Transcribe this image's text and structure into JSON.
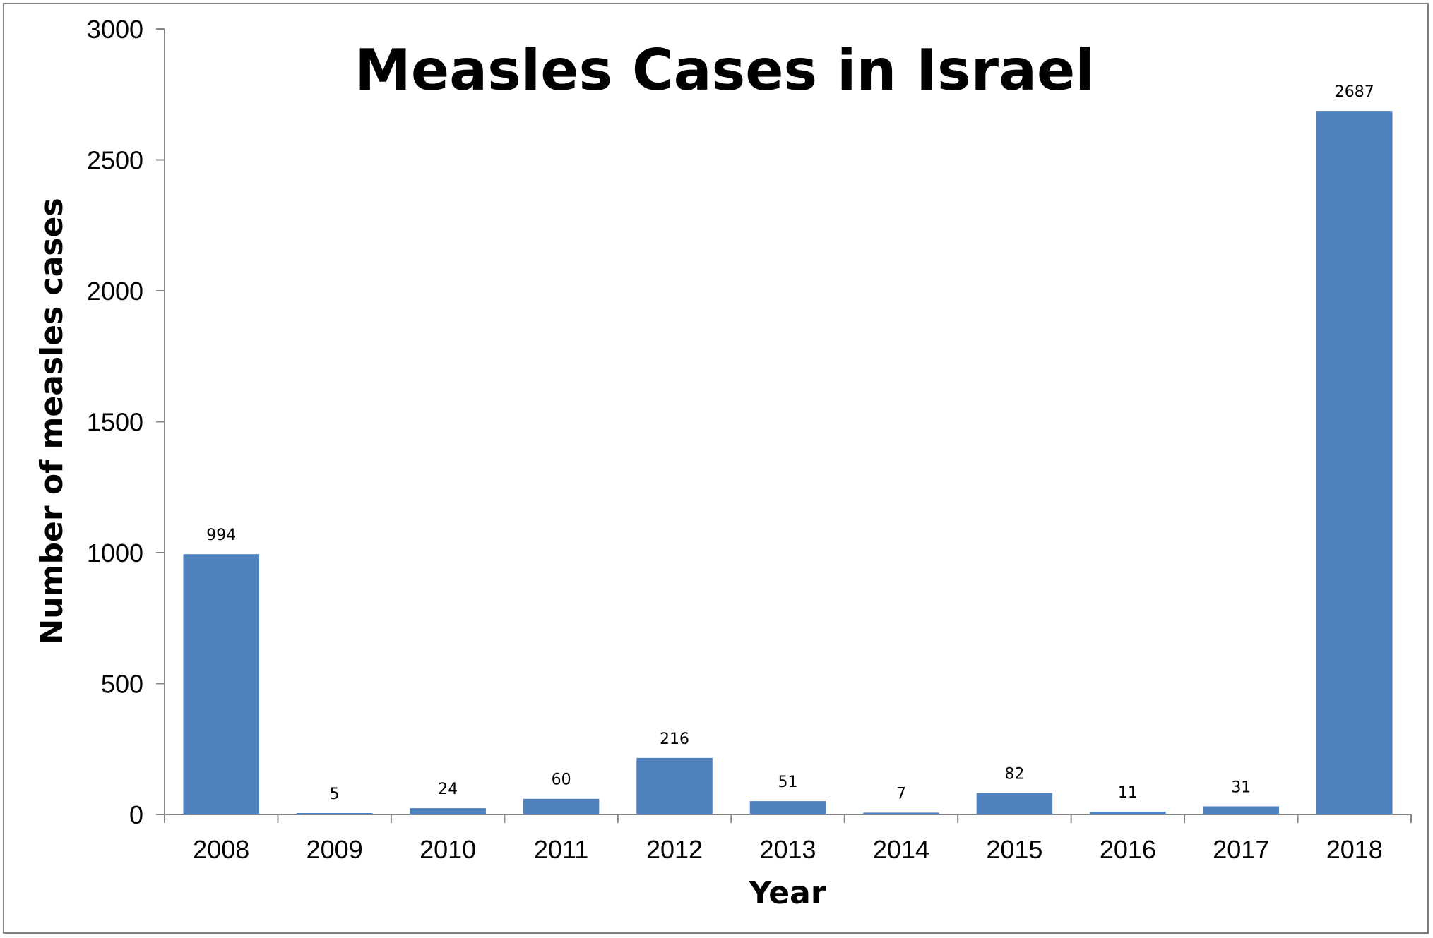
{
  "chart_data": {
    "type": "bar",
    "title": "Measles Cases in Israel",
    "xlabel": "Year",
    "ylabel": "Number of measles cases",
    "categories": [
      "2008",
      "2009",
      "2010",
      "2011",
      "2012",
      "2013",
      "2014",
      "2015",
      "2016",
      "2017",
      "2018"
    ],
    "values": [
      994,
      5,
      24,
      60,
      216,
      51,
      7,
      82,
      11,
      31,
      2687
    ],
    "data_labels": [
      "994",
      "5",
      "24",
      "60",
      "216",
      "51",
      "7",
      "82",
      "11",
      "31",
      "2687"
    ],
    "ylim": [
      0,
      3000
    ],
    "yticks": [
      "0",
      "500",
      "1000",
      "1500",
      "2000",
      "2500",
      "3000"
    ],
    "grid": false,
    "legend": "none",
    "colors": {
      "bar": "#4f81bd",
      "axis": "#868686",
      "border": "#7f7f7f"
    }
  }
}
